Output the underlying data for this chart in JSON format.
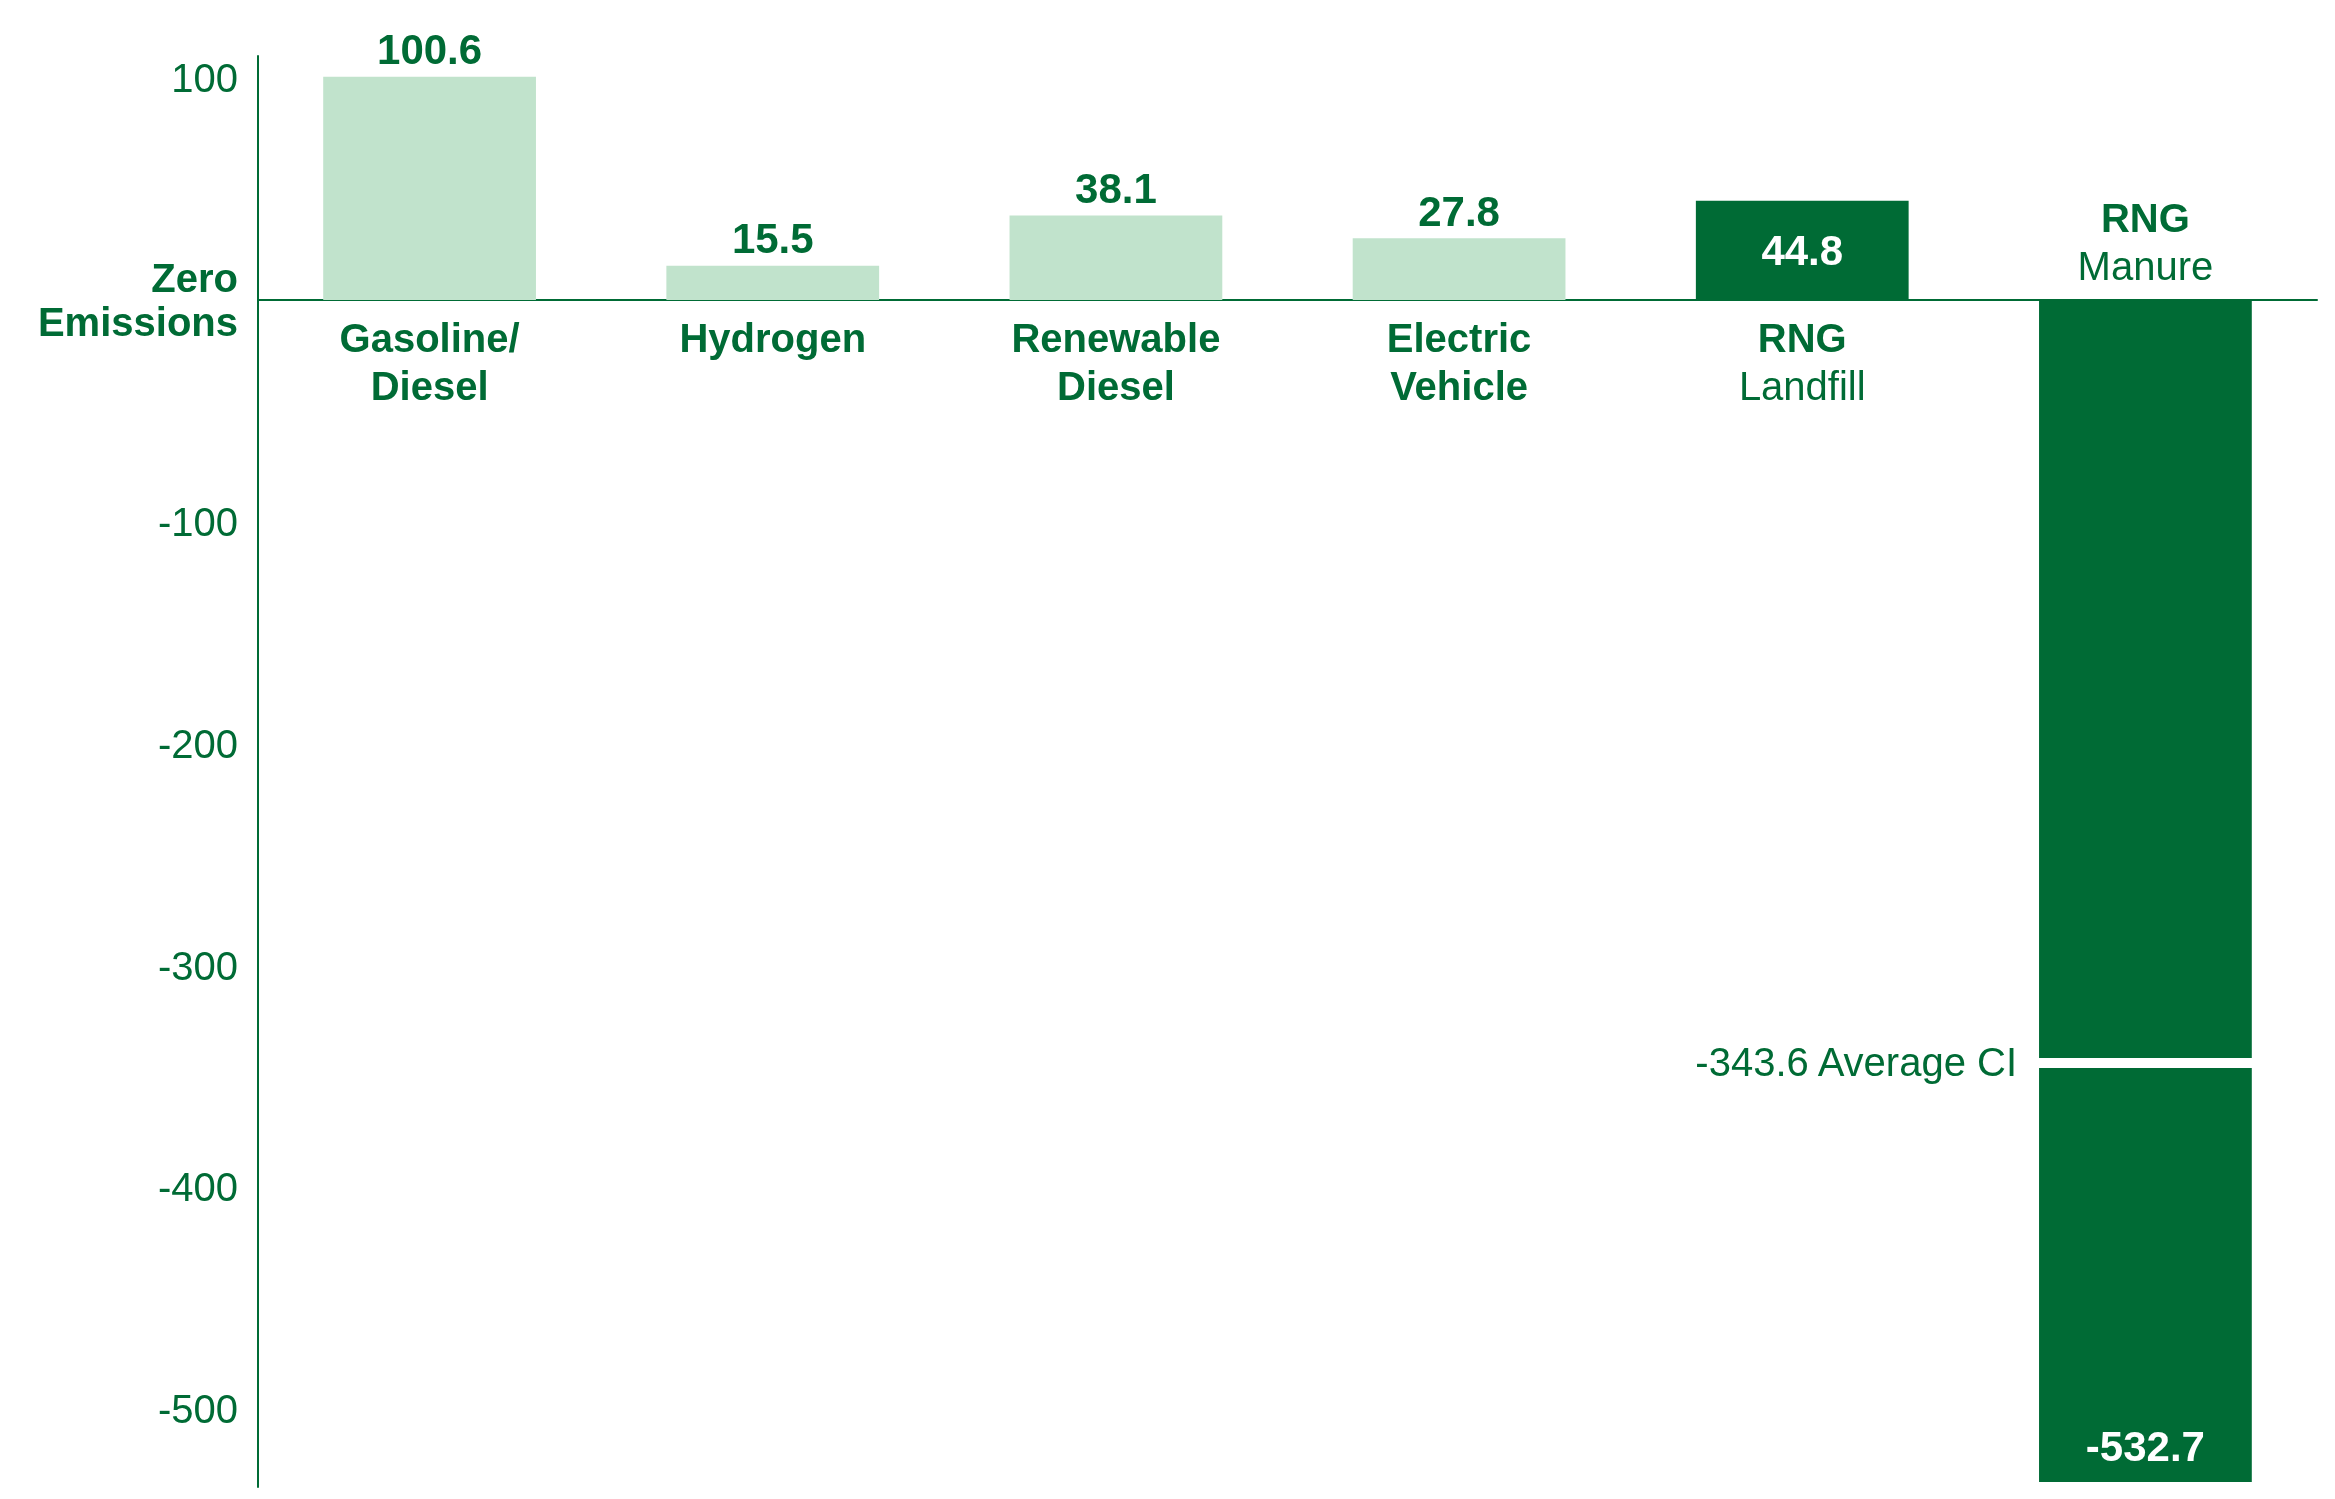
{
  "chart_data": {
    "type": "bar",
    "categories": [
      "Gasoline/\nDiesel",
      "Hydrogen",
      "Renewable\nDiesel",
      "Electric\nVehicle",
      "RNG\nLandfill",
      "RNG\nManure"
    ],
    "values": [
      100.6,
      15.5,
      38.1,
      27.8,
      44.8,
      -532.7
    ],
    "colors": [
      "#c1e3cc",
      "#c1e3cc",
      "#c1e3cc",
      "#c1e3cc",
      "#006b35",
      "#006b35"
    ],
    "data_labels": true,
    "ylim": [
      -535,
      110
    ],
    "yticks": [
      100,
      {
        "value": 0,
        "label": "Zero\nEmissions"
      },
      -100,
      -200,
      -300,
      -400,
      -500
    ],
    "ref_lines": [
      {
        "axis": "y",
        "value": -343.6,
        "label": "-343.6 Average CI",
        "color": "#ffffff"
      }
    ],
    "grid": false
  }
}
